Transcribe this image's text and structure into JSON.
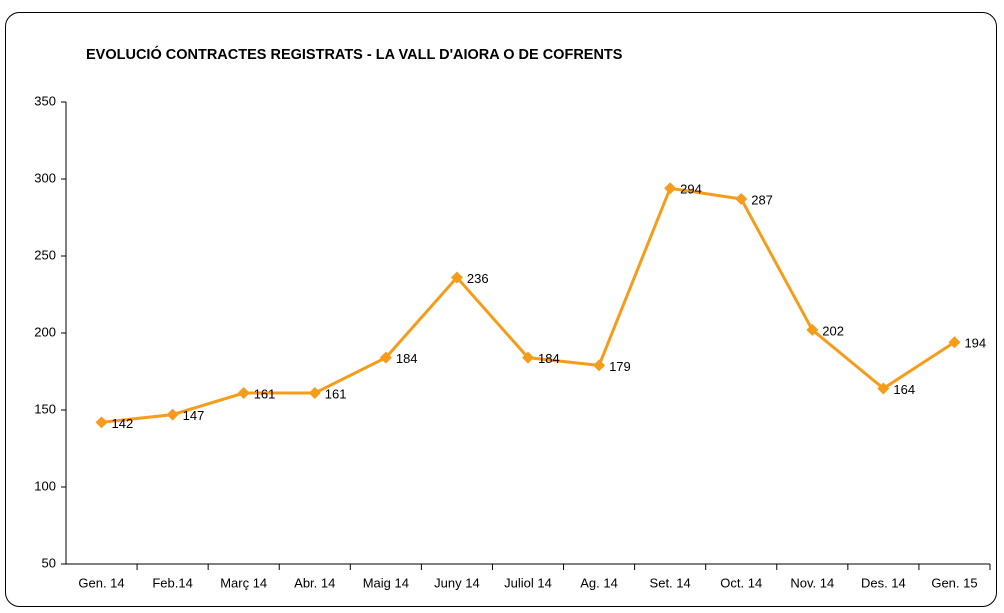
{
  "chart_data": {
    "type": "line",
    "title": "EVOLUCIÓ CONTRACTES REGISTRATS - LA VALL D'AIORA O DE COFRENTS",
    "categories": [
      "Gen. 14",
      "Feb.14",
      "Març 14",
      "Abr. 14",
      "Maig 14",
      "Juny 14",
      "Juliol 14",
      "Ag. 14",
      "Set. 14",
      "Oct. 14",
      "Nov. 14",
      "Des. 14",
      "Gen. 15"
    ],
    "values": [
      142,
      147,
      161,
      161,
      184,
      236,
      184,
      179,
      294,
      287,
      202,
      164,
      194
    ],
    "color": "#f59c1a",
    "ylim": [
      50,
      350
    ],
    "yticks": [
      50,
      100,
      150,
      200,
      250,
      300,
      350
    ],
    "grid": false,
    "data_labels": true
  }
}
